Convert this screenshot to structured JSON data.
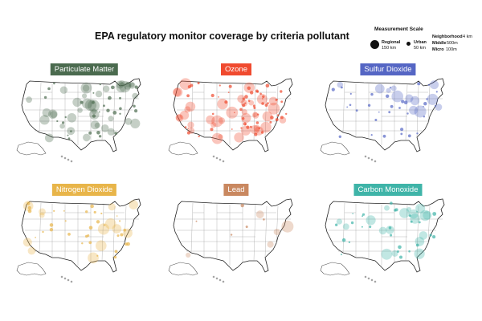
{
  "title": "EPA regulatory monitor coverage by criteria pollutant",
  "legend": {
    "title": "Measurement Scale",
    "items": [
      {
        "name": "Regional",
        "distance": "150 km"
      },
      {
        "name": "Urban",
        "distance": "50 km"
      },
      {
        "name": "Neighborhood",
        "distance": "4 km"
      },
      {
        "name": "Middle",
        "distance": "500m"
      },
      {
        "name": "Micro",
        "distance": "100m"
      }
    ]
  },
  "panels": [
    {
      "label": "Particulate Matter",
      "color": "#4b6b4f",
      "density": "high"
    },
    {
      "label": "Ozone",
      "color": "#f04a2f",
      "density": "very-high"
    },
    {
      "label": "Sulfur Dioxide",
      "color": "#5566c4",
      "density": "medium"
    },
    {
      "label": "Nitrogen Dioxide",
      "color": "#e8b54a",
      "density": "medium"
    },
    {
      "label": "Lead",
      "color": "#c98860",
      "density": "very-low"
    },
    {
      "label": "Carbon Monoxide",
      "color": "#3fb4a8",
      "density": "medium"
    }
  ]
}
